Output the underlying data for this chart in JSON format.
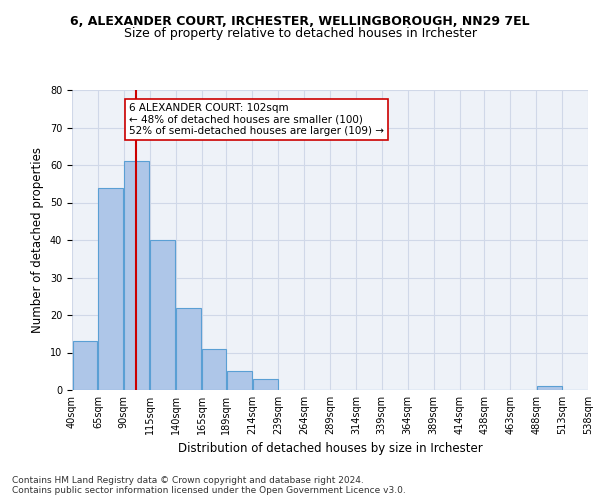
{
  "title": "6, ALEXANDER COURT, IRCHESTER, WELLINGBOROUGH, NN29 7EL",
  "subtitle": "Size of property relative to detached houses in Irchester",
  "xlabel": "Distribution of detached houses by size in Irchester",
  "ylabel": "Number of detached properties",
  "bar_color": "#aec6e8",
  "bar_edge_color": "#5a9fd4",
  "bin_edges": [
    40,
    65,
    90,
    115,
    140,
    165,
    189,
    214,
    239,
    264,
    289,
    314,
    339,
    364,
    389,
    414,
    438,
    463,
    488,
    513,
    538
  ],
  "bar_heights": [
    13,
    54,
    61,
    40,
    22,
    11,
    5,
    3,
    0,
    0,
    0,
    0,
    0,
    0,
    0,
    0,
    0,
    0,
    1,
    0
  ],
  "vline_x": 102,
  "vline_color": "#cc0000",
  "annotation_text": "6 ALEXANDER COURT: 102sqm\n← 48% of detached houses are smaller (100)\n52% of semi-detached houses are larger (109) →",
  "annotation_box_color": "#ffffff",
  "annotation_box_edge_color": "#cc0000",
  "ylim": [
    0,
    80
  ],
  "yticks": [
    0,
    10,
    20,
    30,
    40,
    50,
    60,
    70,
    80
  ],
  "tick_labels": [
    "40sqm",
    "65sqm",
    "90sqm",
    "115sqm",
    "140sqm",
    "165sqm",
    "189sqm",
    "214sqm",
    "239sqm",
    "264sqm",
    "289sqm",
    "314sqm",
    "339sqm",
    "364sqm",
    "389sqm",
    "414sqm",
    "438sqm",
    "463sqm",
    "488sqm",
    "513sqm",
    "538sqm"
  ],
  "grid_color": "#d0d8e8",
  "background_color": "#eef2f8",
  "footnote": "Contains HM Land Registry data © Crown copyright and database right 2024.\nContains public sector information licensed under the Open Government Licence v3.0.",
  "title_fontsize": 9,
  "subtitle_fontsize": 9,
  "xlabel_fontsize": 8.5,
  "ylabel_fontsize": 8.5,
  "tick_fontsize": 7,
  "annotation_fontsize": 7.5,
  "footnote_fontsize": 6.5
}
